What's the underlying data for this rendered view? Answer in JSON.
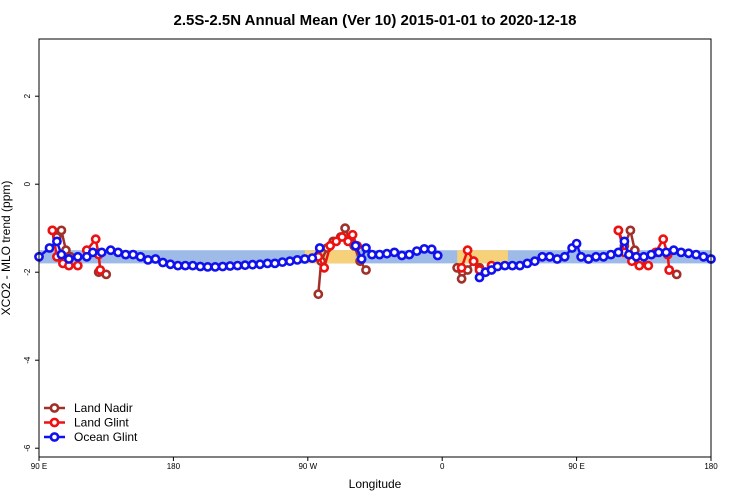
{
  "chart_data": {
    "type": "line",
    "title": "2.5S-2.5N Annual Mean (Ver 10)   2015-01-01 to 2020-12-18",
    "xlabel": "Longitude",
    "ylabel": "XCO2 - MLO trend (ppm)",
    "x_ticks": [
      {
        "value": 90,
        "label": "90 E"
      },
      {
        "value": 180,
        "label": "180"
      },
      {
        "value": 270,
        "label": "90 W"
      },
      {
        "value": 360,
        "label": "0"
      },
      {
        "value": 450,
        "label": "90 E"
      },
      {
        "value": 540,
        "label": "180"
      }
    ],
    "y_ticks": [
      {
        "value": 2,
        "label": "2"
      },
      {
        "value": 0,
        "label": "0"
      },
      {
        "value": -2,
        "label": "-2"
      },
      {
        "value": -4,
        "label": "-4"
      },
      {
        "value": -6,
        "label": "-6"
      }
    ],
    "xlim": [
      90,
      540
    ],
    "ylim": [
      -6.2,
      3.3
    ],
    "legend_position": "bottom-left",
    "bands": [
      {
        "color": "#9dbbe6",
        "segments": [
          [
            90,
            540,
            -1.5,
            -1.8
          ]
        ]
      },
      {
        "color": "#f7d07a",
        "segments": [
          [
            268,
            302,
            -1.5,
            -1.8
          ],
          [
            370,
            404,
            -1.5,
            -1.8
          ]
        ]
      }
    ],
    "series": [
      {
        "name": "Land Nadir",
        "color": "#a0302a",
        "segments": [
          [
            [
              99,
              -1.05
            ],
            [
              102,
              -1.2
            ],
            [
              105,
              -1.05
            ],
            [
              108,
              -1.5
            ],
            [
              111,
              -1.65
            ]
          ],
          [
            [
              130,
              -2.0
            ],
            [
              135,
              -2.05
            ]
          ],
          [
            [
              277,
              -2.5
            ],
            [
              279,
              -1.75
            ],
            [
              283,
              -1.45
            ],
            [
              287,
              -1.3
            ],
            [
              292,
              -1.2
            ],
            [
              295,
              -1.0
            ],
            [
              298,
              -1.25
            ],
            [
              301,
              -1.4
            ],
            [
              305,
              -1.75
            ],
            [
              309,
              -1.95
            ]
          ],
          [
            [
              370,
              -1.9
            ],
            [
              373,
              -2.15
            ],
            [
              377,
              -1.95
            ],
            [
              381,
              -1.75
            ],
            [
              385,
              -1.9
            ]
          ],
          [
            [
              478,
              -1.05
            ],
            [
              482,
              -1.4
            ],
            [
              486,
              -1.05
            ],
            [
              489,
              -1.5
            ],
            [
              493,
              -1.75
            ]
          ],
          [
            [
              512,
              -1.95
            ],
            [
              517,
              -2.05
            ]
          ]
        ]
      },
      {
        "name": "Land Glint",
        "color": "#ee1111",
        "segments": [
          [
            [
              99,
              -1.05
            ],
            [
              102,
              -1.65
            ],
            [
              106,
              -1.8
            ],
            [
              110,
              -1.85
            ],
            [
              116,
              -1.85
            ]
          ],
          [
            [
              122,
              -1.5
            ],
            [
              128,
              -1.25
            ],
            [
              130,
              -1.6
            ],
            [
              131,
              -1.95
            ]
          ],
          [
            [
              277,
              -1.65
            ],
            [
              281,
              -1.9
            ],
            [
              285,
              -1.4
            ],
            [
              289,
              -1.3
            ],
            [
              293,
              -1.2
            ],
            [
              297,
              -1.3
            ],
            [
              300,
              -1.15
            ],
            [
              303,
              -1.4
            ]
          ],
          [
            [
              373,
              -1.9
            ],
            [
              377,
              -1.5
            ],
            [
              381,
              -1.75
            ],
            [
              385,
              -1.95
            ],
            [
              389,
              -2.0
            ],
            [
              393,
              -1.85
            ]
          ],
          [
            [
              478,
              -1.05
            ],
            [
              482,
              -1.55
            ],
            [
              487,
              -1.75
            ],
            [
              492,
              -1.85
            ],
            [
              498,
              -1.85
            ]
          ],
          [
            [
              503,
              -1.55
            ],
            [
              508,
              -1.25
            ],
            [
              511,
              -1.6
            ],
            [
              512,
              -1.95
            ]
          ]
        ]
      },
      {
        "name": "Ocean Glint",
        "color": "#1111ee",
        "segments": [
          [
            [
              90,
              -1.65
            ],
            [
              97,
              -1.45
            ],
            [
              102,
              -1.3
            ],
            [
              105,
              -1.6
            ],
            [
              110,
              -1.7
            ],
            [
              116,
              -1.65
            ],
            [
              122,
              -1.65
            ],
            [
              126,
              -1.55
            ],
            [
              132,
              -1.55
            ],
            [
              138,
              -1.5
            ],
            [
              143,
              -1.55
            ],
            [
              148,
              -1.6
            ],
            [
              153,
              -1.6
            ],
            [
              158,
              -1.65
            ],
            [
              163,
              -1.72
            ],
            [
              168,
              -1.7
            ],
            [
              173,
              -1.78
            ],
            [
              178,
              -1.82
            ],
            [
              183,
              -1.85
            ],
            [
              188,
              -1.85
            ],
            [
              193,
              -1.85
            ],
            [
              198,
              -1.87
            ],
            [
              203,
              -1.88
            ],
            [
              208,
              -1.88
            ],
            [
              213,
              -1.87
            ],
            [
              218,
              -1.86
            ],
            [
              223,
              -1.85
            ],
            [
              228,
              -1.84
            ],
            [
              233,
              -1.83
            ],
            [
              238,
              -1.82
            ],
            [
              243,
              -1.8
            ],
            [
              248,
              -1.8
            ],
            [
              253,
              -1.77
            ],
            [
              258,
              -1.75
            ],
            [
              263,
              -1.72
            ],
            [
              268,
              -1.7
            ],
            [
              273,
              -1.68
            ],
            [
              278,
              -1.45
            ]
          ],
          [
            [
              302,
              -1.4
            ],
            [
              306,
              -1.7
            ],
            [
              309,
              -1.45
            ],
            [
              313,
              -1.6
            ],
            [
              318,
              -1.6
            ],
            [
              323,
              -1.58
            ],
            [
              328,
              -1.55
            ],
            [
              333,
              -1.62
            ],
            [
              338,
              -1.6
            ],
            [
              343,
              -1.52
            ],
            [
              348,
              -1.47
            ],
            [
              353,
              -1.48
            ],
            [
              357,
              -1.62
            ]
          ],
          [
            [
              385,
              -2.12
            ],
            [
              389,
              -2.0
            ],
            [
              393,
              -1.95
            ],
            [
              397,
              -1.87
            ],
            [
              402,
              -1.85
            ],
            [
              407,
              -1.85
            ],
            [
              412,
              -1.85
            ],
            [
              417,
              -1.8
            ],
            [
              422,
              -1.75
            ],
            [
              427,
              -1.65
            ],
            [
              432,
              -1.65
            ],
            [
              437,
              -1.7
            ],
            [
              442,
              -1.65
            ],
            [
              447,
              -1.45
            ],
            [
              450,
              -1.35
            ],
            [
              453,
              -1.65
            ],
            [
              458,
              -1.7
            ],
            [
              463,
              -1.65
            ],
            [
              468,
              -1.65
            ],
            [
              473,
              -1.6
            ],
            [
              478,
              -1.55
            ],
            [
              482,
              -1.3
            ],
            [
              485,
              -1.6
            ],
            [
              490,
              -1.65
            ],
            [
              495,
              -1.65
            ],
            [
              500,
              -1.6
            ],
            [
              505,
              -1.55
            ],
            [
              510,
              -1.55
            ],
            [
              515,
              -1.5
            ],
            [
              520,
              -1.55
            ],
            [
              525,
              -1.57
            ],
            [
              530,
              -1.6
            ],
            [
              535,
              -1.65
            ],
            [
              540,
              -1.7
            ]
          ]
        ]
      }
    ]
  }
}
